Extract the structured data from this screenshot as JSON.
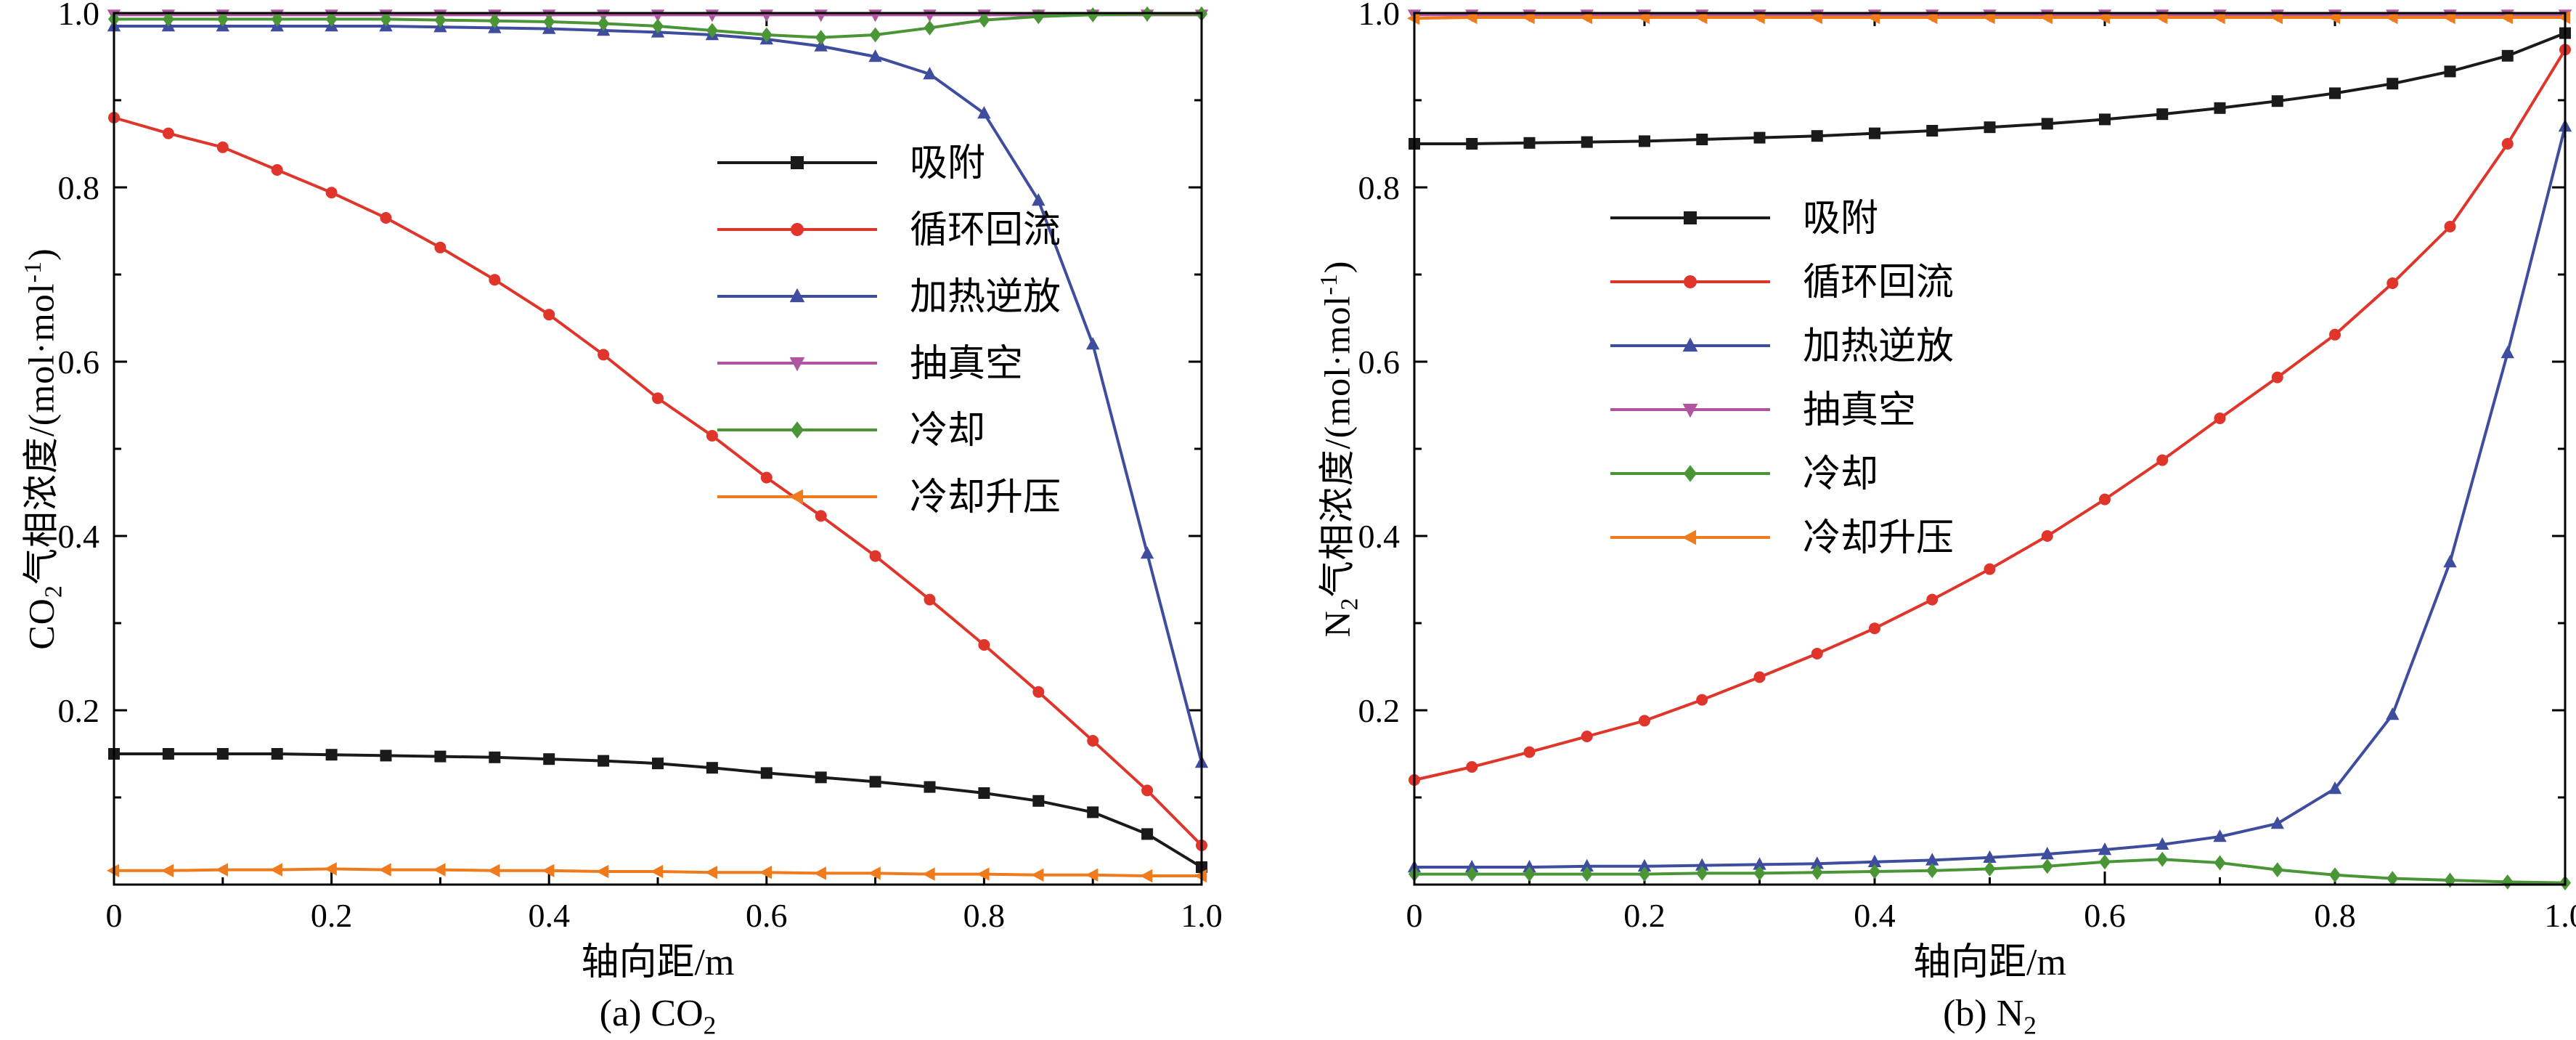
{
  "page": {
    "background": "#ffffff"
  },
  "chart_data": [
    {
      "type": "line",
      "caption": {
        "pre": "(a) CO",
        "sub": "2"
      },
      "xlabel": "轴向距/m",
      "ylabel": {
        "pre": "CO",
        "sub": "2",
        "mid": "气相浓度/(mol·mol",
        "sup": "-1",
        "post": ")"
      },
      "xlim": [
        0,
        1
      ],
      "ylim": [
        0,
        1
      ],
      "xticks": [
        0,
        0.2,
        0.4,
        0.6,
        0.8,
        1.0
      ],
      "xtick_labels": [
        "0",
        "0.2",
        "0.4",
        "0.6",
        "0.8",
        "1.0"
      ],
      "yticks": [
        0.2,
        0.4,
        0.6,
        0.8,
        1.0
      ],
      "ytick_labels": [
        "0.2",
        "0.4",
        "0.6",
        "0.8",
        "1.0"
      ],
      "grid": false,
      "legend_position": "inside upper-right-of-center",
      "x": [
        0,
        0.05,
        0.1,
        0.15,
        0.2,
        0.25,
        0.3,
        0.35,
        0.4,
        0.45,
        0.5,
        0.55,
        0.6,
        0.65,
        0.7,
        0.75,
        0.8,
        0.85,
        0.9,
        0.95,
        1.0
      ],
      "series": [
        {
          "key": "adsorption",
          "name": "吸附",
          "color": "#1a1a1a",
          "marker": "square",
          "values": [
            0.15,
            0.15,
            0.15,
            0.15,
            0.149,
            0.148,
            0.147,
            0.146,
            0.144,
            0.142,
            0.139,
            0.134,
            0.128,
            0.123,
            0.118,
            0.112,
            0.105,
            0.096,
            0.083,
            0.058,
            0.02
          ]
        },
        {
          "key": "recirculation",
          "name": "循环回流",
          "color": "#e0352b",
          "marker": "circle",
          "values": [
            0.88,
            0.862,
            0.846,
            0.82,
            0.794,
            0.765,
            0.731,
            0.694,
            0.654,
            0.608,
            0.558,
            0.515,
            0.467,
            0.423,
            0.377,
            0.327,
            0.275,
            0.221,
            0.165,
            0.108,
            0.045
          ]
        },
        {
          "key": "heating-desorption",
          "name": "加热逆放",
          "color": "#3f4d9e",
          "marker": "triangle-up",
          "values": [
            0.985,
            0.985,
            0.985,
            0.985,
            0.985,
            0.985,
            0.984,
            0.983,
            0.982,
            0.98,
            0.978,
            0.975,
            0.97,
            0.962,
            0.95,
            0.93,
            0.885,
            0.785,
            0.62,
            0.38,
            0.14
          ]
        },
        {
          "key": "vacuum",
          "name": "抽真空",
          "color": "#b0559f",
          "marker": "triangle-down",
          "values": [
            0.998,
            0.998,
            0.998,
            0.998,
            0.998,
            0.998,
            0.998,
            0.998,
            0.998,
            0.998,
            0.998,
            0.998,
            0.998,
            0.998,
            0.998,
            0.998,
            0.998,
            0.998,
            0.998,
            0.998,
            0.998
          ]
        },
        {
          "key": "cooling",
          "name": "冷却",
          "color": "#4a9637",
          "marker": "diamond",
          "values": [
            0.993,
            0.993,
            0.993,
            0.993,
            0.993,
            0.993,
            0.992,
            0.991,
            0.99,
            0.988,
            0.985,
            0.98,
            0.975,
            0.972,
            0.975,
            0.983,
            0.992,
            0.996,
            0.998,
            0.999,
            0.999
          ]
        },
        {
          "key": "cooling-pressurization",
          "name": "冷却升压",
          "color": "#ef7b1c",
          "marker": "triangle-left",
          "values": [
            0.016,
            0.016,
            0.017,
            0.017,
            0.018,
            0.017,
            0.017,
            0.016,
            0.016,
            0.015,
            0.015,
            0.014,
            0.014,
            0.013,
            0.013,
            0.012,
            0.012,
            0.011,
            0.011,
            0.01,
            0.01
          ]
        }
      ]
    },
    {
      "type": "line",
      "caption": {
        "pre": "(b) N",
        "sub": "2"
      },
      "xlabel": "轴向距/m",
      "ylabel": {
        "pre": "N",
        "sub": "2",
        "mid": "气相浓度/(mol·mol",
        "sup": "-1",
        "post": ")"
      },
      "xlim": [
        0,
        1
      ],
      "ylim": [
        0,
        1
      ],
      "xticks": [
        0,
        0.2,
        0.4,
        0.6,
        0.8,
        1.0
      ],
      "xtick_labels": [
        "0",
        "0.2",
        "0.4",
        "0.6",
        "0.8",
        "1.0"
      ],
      "yticks": [
        0.2,
        0.4,
        0.6,
        0.8,
        1.0
      ],
      "ytick_labels": [
        "0.2",
        "0.4",
        "0.6",
        "0.8",
        "1.0"
      ],
      "grid": false,
      "legend_position": "inside upper-left",
      "x": [
        0,
        0.05,
        0.1,
        0.15,
        0.2,
        0.25,
        0.3,
        0.35,
        0.4,
        0.45,
        0.5,
        0.55,
        0.6,
        0.65,
        0.7,
        0.75,
        0.8,
        0.85,
        0.9,
        0.95,
        1.0
      ],
      "series": [
        {
          "key": "adsorption",
          "name": "吸附",
          "color": "#1a1a1a",
          "marker": "square",
          "values": [
            0.85,
            0.85,
            0.851,
            0.852,
            0.853,
            0.855,
            0.857,
            0.859,
            0.862,
            0.865,
            0.869,
            0.873,
            0.878,
            0.884,
            0.891,
            0.899,
            0.908,
            0.919,
            0.933,
            0.951,
            0.977
          ]
        },
        {
          "key": "recirculation",
          "name": "循环回流",
          "color": "#e0352b",
          "marker": "circle",
          "values": [
            0.12,
            0.135,
            0.152,
            0.17,
            0.188,
            0.212,
            0.238,
            0.265,
            0.294,
            0.327,
            0.362,
            0.4,
            0.442,
            0.487,
            0.535,
            0.582,
            0.631,
            0.69,
            0.755,
            0.85,
            0.958
          ]
        },
        {
          "key": "heating-desorption",
          "name": "加热逆放",
          "color": "#3f4d9e",
          "marker": "triangle-up",
          "values": [
            0.02,
            0.02,
            0.02,
            0.021,
            0.021,
            0.022,
            0.023,
            0.024,
            0.026,
            0.028,
            0.031,
            0.035,
            0.04,
            0.046,
            0.055,
            0.07,
            0.11,
            0.195,
            0.37,
            0.61,
            0.87
          ]
        },
        {
          "key": "vacuum",
          "name": "抽真空",
          "color": "#b0559f",
          "marker": "triangle-down",
          "values": [
            0.998,
            0.998,
            0.998,
            0.998,
            0.998,
            0.998,
            0.998,
            0.998,
            0.998,
            0.998,
            0.998,
            0.998,
            0.998,
            0.998,
            0.998,
            0.998,
            0.998,
            0.998,
            0.998,
            0.998,
            0.998
          ]
        },
        {
          "key": "cooling",
          "name": "冷却",
          "color": "#4a9637",
          "marker": "diamond",
          "values": [
            0.012,
            0.012,
            0.012,
            0.012,
            0.012,
            0.013,
            0.013,
            0.014,
            0.015,
            0.016,
            0.018,
            0.021,
            0.026,
            0.029,
            0.025,
            0.017,
            0.011,
            0.007,
            0.005,
            0.003,
            0.002
          ]
        },
        {
          "key": "cooling-pressurization",
          "name": "冷却升压",
          "color": "#ef7b1c",
          "marker": "triangle-left",
          "values": [
            0.994,
            0.995,
            0.995,
            0.995,
            0.995,
            0.995,
            0.995,
            0.995,
            0.995,
            0.995,
            0.995,
            0.995,
            0.995,
            0.995,
            0.995,
            0.995,
            0.995,
            0.995,
            0.995,
            0.995,
            0.995
          ]
        }
      ]
    }
  ]
}
